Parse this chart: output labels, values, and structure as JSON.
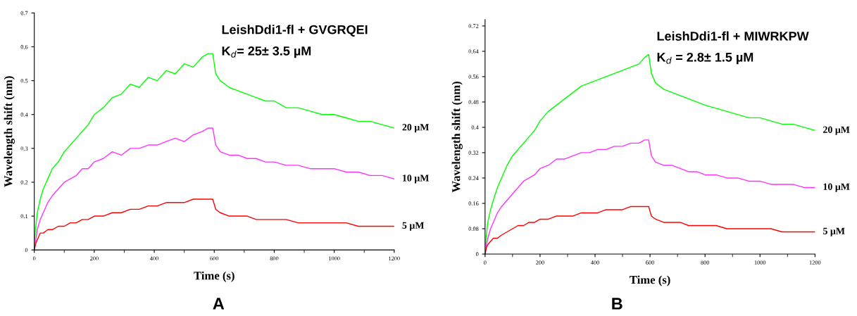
{
  "chart_data": [
    {
      "type": "line",
      "xlabel": "Time (s)",
      "ylabel": "Wavelength shift (nm)",
      "annotations": [
        "LeishDdi1-fl + GVGRQEI",
        "K$_{d}$= 25± 3.5 µM",
        "A"
      ],
      "x": [
        0,
        5,
        10,
        20,
        30,
        45,
        60,
        80,
        100,
        120,
        140,
        160,
        180,
        200,
        230,
        260,
        290,
        320,
        350,
        380,
        410,
        440,
        470,
        500,
        530,
        560,
        580,
        595,
        605,
        620,
        650,
        680,
        710,
        740,
        770,
        800,
        840,
        880,
        920,
        960,
        1000,
        1040,
        1080,
        1120,
        1160,
        1200
      ],
      "xlim": [
        0,
        1200
      ],
      "xticks": [
        0,
        200,
        400,
        600,
        800,
        1000,
        1200
      ],
      "ylim": [
        0,
        0.7
      ],
      "yticks": [
        0,
        0.1,
        0.2,
        0.3,
        0.4,
        0.5,
        0.6,
        0.7
      ],
      "grid": false,
      "legend": false,
      "line_style": "solid",
      "series": [
        {
          "name": "20 µM",
          "color": "#00ff00",
          "values": [
            0.02,
            0.07,
            0.11,
            0.15,
            0.18,
            0.21,
            0.24,
            0.26,
            0.29,
            0.31,
            0.33,
            0.35,
            0.37,
            0.4,
            0.42,
            0.45,
            0.46,
            0.49,
            0.48,
            0.51,
            0.5,
            0.53,
            0.52,
            0.55,
            0.54,
            0.57,
            0.58,
            0.58,
            0.52,
            0.5,
            0.48,
            0.47,
            0.46,
            0.45,
            0.44,
            0.44,
            0.42,
            0.42,
            0.41,
            0.4,
            0.4,
            0.39,
            0.38,
            0.38,
            0.37,
            0.36
          ]
        },
        {
          "name": "10 µM",
          "color": "#ff33ff",
          "values": [
            0.0,
            0.03,
            0.06,
            0.09,
            0.11,
            0.14,
            0.16,
            0.18,
            0.2,
            0.21,
            0.22,
            0.24,
            0.24,
            0.26,
            0.27,
            0.29,
            0.28,
            0.3,
            0.3,
            0.31,
            0.31,
            0.32,
            0.33,
            0.32,
            0.34,
            0.35,
            0.36,
            0.36,
            0.31,
            0.29,
            0.28,
            0.28,
            0.27,
            0.27,
            0.26,
            0.26,
            0.25,
            0.25,
            0.24,
            0.24,
            0.24,
            0.23,
            0.23,
            0.22,
            0.22,
            0.21
          ]
        },
        {
          "name": "5 µM",
          "color": "#ff0000",
          "values": [
            0.0,
            0.02,
            0.03,
            0.05,
            0.05,
            0.06,
            0.06,
            0.07,
            0.07,
            0.08,
            0.08,
            0.09,
            0.09,
            0.1,
            0.1,
            0.11,
            0.11,
            0.12,
            0.12,
            0.13,
            0.13,
            0.14,
            0.14,
            0.14,
            0.15,
            0.15,
            0.15,
            0.15,
            0.12,
            0.11,
            0.1,
            0.1,
            0.1,
            0.09,
            0.09,
            0.09,
            0.09,
            0.08,
            0.08,
            0.08,
            0.08,
            0.08,
            0.07,
            0.07,
            0.07,
            0.07
          ]
        }
      ]
    },
    {
      "type": "line",
      "xlabel": "Time (s)",
      "ylabel": "Wavelength shift (nm)",
      "annotations": [
        "LeishDdi1-fl + MIWRKPW",
        "K$_{d}$ = 2.8± 1.5 µM",
        "B"
      ],
      "x": [
        0,
        5,
        10,
        20,
        30,
        45,
        60,
        80,
        100,
        120,
        140,
        160,
        180,
        200,
        230,
        260,
        290,
        320,
        350,
        380,
        410,
        440,
        470,
        500,
        530,
        560,
        580,
        595,
        605,
        620,
        650,
        680,
        710,
        740,
        770,
        800,
        840,
        880,
        920,
        960,
        1000,
        1040,
        1080,
        1120,
        1160,
        1200
      ],
      "xlim": [
        0,
        1200
      ],
      "xticks": [
        0,
        200,
        400,
        600,
        800,
        1000,
        1200
      ],
      "ylim": [
        0,
        0.74
      ],
      "yticks": [
        0,
        0.08,
        0.16,
        0.24,
        0.32,
        0.4,
        0.48,
        0.56,
        0.64,
        0.72
      ],
      "grid": false,
      "legend": false,
      "line_style": "solid",
      "series": [
        {
          "name": "20 µM",
          "color": "#00ff00",
          "values": [
            0.02,
            0.06,
            0.1,
            0.14,
            0.17,
            0.21,
            0.24,
            0.28,
            0.31,
            0.33,
            0.35,
            0.37,
            0.39,
            0.42,
            0.45,
            0.47,
            0.49,
            0.51,
            0.53,
            0.54,
            0.55,
            0.56,
            0.57,
            0.58,
            0.59,
            0.6,
            0.62,
            0.63,
            0.57,
            0.54,
            0.52,
            0.51,
            0.5,
            0.49,
            0.48,
            0.47,
            0.46,
            0.45,
            0.44,
            0.43,
            0.43,
            0.42,
            0.41,
            0.41,
            0.4,
            0.39
          ]
        },
        {
          "name": "10 µM",
          "color": "#ff33ff",
          "values": [
            0.0,
            0.03,
            0.05,
            0.08,
            0.1,
            0.13,
            0.15,
            0.17,
            0.19,
            0.21,
            0.23,
            0.24,
            0.25,
            0.27,
            0.28,
            0.3,
            0.3,
            0.31,
            0.32,
            0.32,
            0.33,
            0.33,
            0.34,
            0.34,
            0.35,
            0.35,
            0.36,
            0.36,
            0.31,
            0.29,
            0.28,
            0.28,
            0.27,
            0.26,
            0.26,
            0.25,
            0.25,
            0.24,
            0.24,
            0.23,
            0.23,
            0.22,
            0.22,
            0.22,
            0.21,
            0.21
          ]
        },
        {
          "name": "5 µM",
          "color": "#ff0000",
          "values": [
            0.0,
            0.02,
            0.03,
            0.04,
            0.05,
            0.05,
            0.06,
            0.07,
            0.08,
            0.09,
            0.09,
            0.1,
            0.1,
            0.11,
            0.11,
            0.12,
            0.12,
            0.12,
            0.13,
            0.13,
            0.13,
            0.14,
            0.14,
            0.14,
            0.15,
            0.15,
            0.15,
            0.15,
            0.12,
            0.11,
            0.1,
            0.1,
            0.1,
            0.09,
            0.09,
            0.09,
            0.09,
            0.08,
            0.08,
            0.08,
            0.08,
            0.08,
            0.07,
            0.07,
            0.07,
            0.07
          ]
        }
      ]
    }
  ]
}
